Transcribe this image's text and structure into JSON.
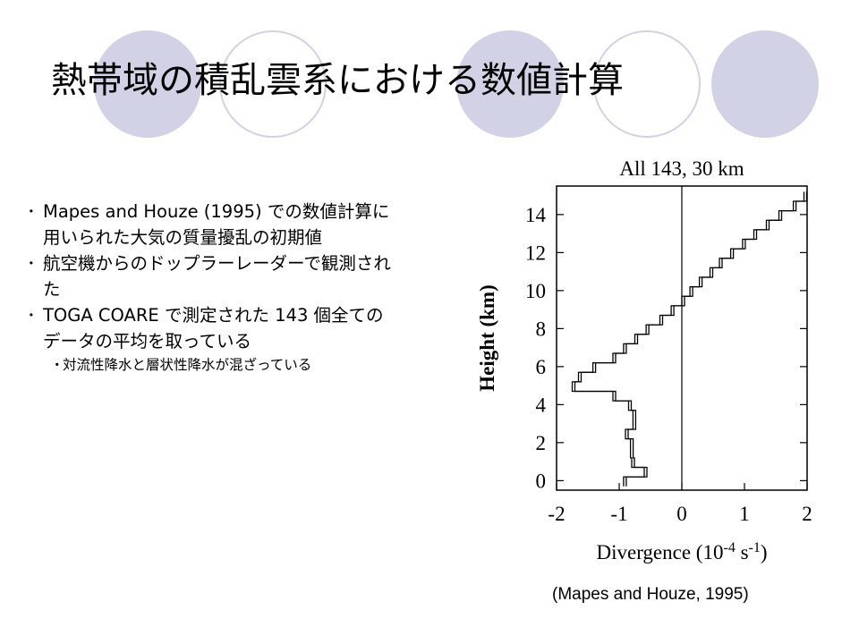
{
  "slide": {
    "title": "熱帯域の積乱雲系における数値計算",
    "bullets": [
      {
        "mark": "･",
        "lines": [
          "Mapes and Houze (1995) での数値計算に",
          "用いられた大気の質量擾乱の初期値"
        ]
      },
      {
        "mark": "･",
        "lines": [
          "航空機からのドップラーレーダーで観測され",
          "た"
        ]
      },
      {
        "mark": "･",
        "lines": [
          "TOGA COARE で測定された 143 個全ての",
          "データの平均を取っている"
        ]
      }
    ],
    "sub_bullet": {
      "mark": "・",
      "text": "対流性降水と層状性降水が混ざっている"
    },
    "source": "(Mapes and Houze, 1995)",
    "colors": {
      "decoration": "#d2d2e6",
      "text": "#000000"
    }
  },
  "chart_data": {
    "type": "line",
    "title": "All 143, 30 km",
    "xlabel": "Divergence (10",
    "xlabel_exp1": "-4",
    "xlabel_mid": " s",
    "xlabel_exp2": "-1",
    "xlabel_end": ")",
    "ylabel": "Height (km)",
    "xlim": [
      -2,
      2
    ],
    "ylim": [
      -0.5,
      15.5
    ],
    "xticks": [
      "-2",
      "-1",
      "0",
      "1",
      "2"
    ],
    "yticks": [
      "0",
      "2",
      "4",
      "6",
      "8",
      "10",
      "12",
      "14"
    ],
    "zero_line": true,
    "profile_steps": [
      {
        "z": [
          -0.3,
          0.2
        ],
        "x": -0.93
      },
      {
        "z": [
          0.2,
          0.7
        ],
        "x": -0.6
      },
      {
        "z": [
          0.7,
          1.2
        ],
        "x": -0.8
      },
      {
        "z": [
          1.2,
          2.2
        ],
        "x": -0.82
      },
      {
        "z": [
          2.2,
          2.7
        ],
        "x": -0.9
      },
      {
        "z": [
          2.7,
          3.7
        ],
        "x": -0.78
      },
      {
        "z": [
          3.7,
          4.2
        ],
        "x": -0.85
      },
      {
        "z": [
          4.2,
          4.7
        ],
        "x": -1.1
      },
      {
        "z": [
          4.7,
          5.2
        ],
        "x": -1.75
      },
      {
        "z": [
          5.2,
          5.7
        ],
        "x": -1.65
      },
      {
        "z": [
          5.7,
          6.2
        ],
        "x": -1.42
      },
      {
        "z": [
          6.2,
          6.7
        ],
        "x": -1.1
      },
      {
        "z": [
          6.7,
          7.2
        ],
        "x": -0.93
      },
      {
        "z": [
          7.2,
          7.7
        ],
        "x": -0.75
      },
      {
        "z": [
          7.7,
          8.2
        ],
        "x": -0.57
      },
      {
        "z": [
          8.2,
          8.7
        ],
        "x": -0.35
      },
      {
        "z": [
          8.7,
          9.2
        ],
        "x": -0.17
      },
      {
        "z": [
          9.2,
          9.7
        ],
        "x": 0.0
      },
      {
        "z": [
          9.7,
          10.2
        ],
        "x": 0.13
      },
      {
        "z": [
          10.2,
          10.7
        ],
        "x": 0.28
      },
      {
        "z": [
          10.7,
          11.2
        ],
        "x": 0.45
      },
      {
        "z": [
          11.2,
          11.7
        ],
        "x": 0.6
      },
      {
        "z": [
          11.7,
          12.2
        ],
        "x": 0.78
      },
      {
        "z": [
          12.2,
          12.7
        ],
        "x": 0.97
      },
      {
        "z": [
          12.7,
          13.2
        ],
        "x": 1.15
      },
      {
        "z": [
          13.2,
          13.7
        ],
        "x": 1.35
      },
      {
        "z": [
          13.7,
          14.2
        ],
        "x": 1.55
      },
      {
        "z": [
          14.2,
          14.7
        ],
        "x": 1.78
      },
      {
        "z": [
          14.7,
          15.2
        ],
        "x": 1.95
      }
    ]
  }
}
